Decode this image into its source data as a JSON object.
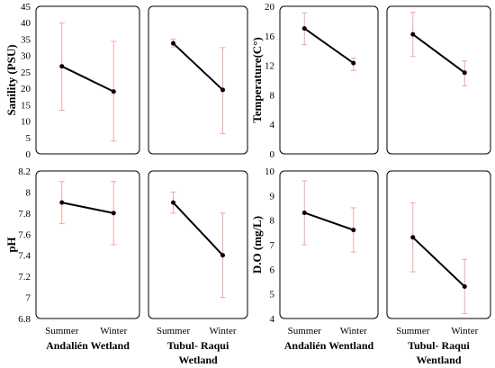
{
  "colors": {
    "line": "#000000",
    "error_bar": "#f4a6a3",
    "panel_border": "#000000"
  },
  "chart_data": [
    {
      "type": "line",
      "ylabel": "Sanility (PSU)",
      "ylim": [
        0,
        45
      ],
      "yticks": [
        0,
        5,
        10,
        15,
        20,
        25,
        30,
        35,
        40,
        45
      ],
      "categories": [
        "Summer",
        "Winter"
      ],
      "panels": [
        {
          "series": [
            {
              "values": [
                26.7,
                19.0
              ],
              "err_low": [
                13.3,
                3.9
              ],
              "err_high": [
                39.9,
                34.3
              ]
            }
          ]
        },
        {
          "series": [
            {
              "values": [
                33.7,
                19.5
              ],
              "err_low": [
                32.6,
                6.2
              ],
              "err_high": [
                35.0,
                32.4
              ]
            }
          ]
        }
      ]
    },
    {
      "type": "line",
      "ylabel": "Temperature(C°)",
      "ylim": [
        0,
        20
      ],
      "yticks": [
        0,
        4,
        8,
        12,
        16,
        20
      ],
      "categories": [
        "Summer",
        "Winter"
      ],
      "panels": [
        {
          "series": [
            {
              "values": [
                17.0,
                12.3
              ],
              "err_low": [
                14.8,
                11.3
              ],
              "err_high": [
                19.1,
                13.0
              ]
            }
          ]
        },
        {
          "series": [
            {
              "values": [
                16.2,
                11.0
              ],
              "err_low": [
                13.2,
                9.2
              ],
              "err_high": [
                19.2,
                12.6
              ]
            }
          ]
        }
      ]
    },
    {
      "type": "line",
      "ylabel": "pH",
      "ylim": [
        6.8,
        8.2
      ],
      "yticks": [
        6.8,
        7,
        7.2,
        7.4,
        7.6,
        7.8,
        8,
        8.2
      ],
      "categories": [
        "Summer",
        "Winter"
      ],
      "group_labels": [
        "Andalién Wetland",
        "Tubul- Raqui\nWetland"
      ],
      "panels": [
        {
          "series": [
            {
              "values": [
                7.9,
                7.8
              ],
              "err_low": [
                7.7,
                7.5
              ],
              "err_high": [
                8.1,
                8.1
              ]
            }
          ]
        },
        {
          "series": [
            {
              "values": [
                7.9,
                7.4
              ],
              "err_low": [
                7.8,
                7.0
              ],
              "err_high": [
                8.0,
                7.8
              ]
            }
          ]
        }
      ]
    },
    {
      "type": "line",
      "ylabel": "D.O (mg/L)",
      "ylim": [
        4,
        10
      ],
      "yticks": [
        4,
        5,
        6,
        7,
        8,
        9,
        10
      ],
      "categories": [
        "Summer",
        "Winter"
      ],
      "group_labels": [
        "Andalién Wentland",
        "Tubul- Raqui\nWentland"
      ],
      "panels": [
        {
          "series": [
            {
              "values": [
                8.3,
                7.6
              ],
              "err_low": [
                7.0,
                6.7
              ],
              "err_high": [
                9.6,
                8.5
              ]
            }
          ]
        },
        {
          "series": [
            {
              "values": [
                7.3,
                5.3
              ],
              "err_low": [
                5.9,
                4.2
              ],
              "err_high": [
                8.7,
                6.4
              ]
            }
          ]
        }
      ]
    }
  ]
}
